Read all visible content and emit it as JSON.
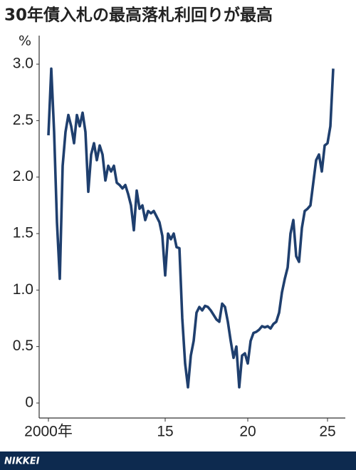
{
  "chart_data": {
    "type": "line",
    "title": "30年債入札の最高落札利回りが最高",
    "y_unit": "%",
    "logo": "NIKKEI",
    "categories": [
      "2000年",
      null,
      null,
      null,
      null,
      null,
      null,
      null,
      null,
      null,
      null,
      null,
      null,
      null,
      null,
      null,
      null,
      null,
      null,
      null,
      null,
      null,
      null,
      null,
      null,
      null,
      null,
      null,
      null,
      null,
      null,
      null,
      null,
      null,
      null,
      null,
      null,
      null,
      null,
      null,
      null,
      "15",
      null,
      null,
      null,
      null,
      null,
      null,
      null,
      null,
      null,
      null,
      null,
      null,
      null,
      null,
      null,
      null,
      null,
      null,
      null,
      null,
      null,
      null,
      null,
      null,
      null,
      null,
      null,
      null,
      "20",
      null,
      null,
      null,
      null,
      null,
      null,
      null,
      null,
      null,
      null,
      null,
      null,
      null,
      null,
      null,
      null,
      null,
      null,
      null,
      null,
      null,
      null,
      null,
      null,
      null,
      null,
      null,
      "25",
      null,
      null
    ],
    "series": [
      {
        "name": null,
        "color": "#1f3f6e",
        "values": [
          2.37,
          2.96,
          2.4,
          1.6,
          1.1,
          2.1,
          2.4,
          2.55,
          2.45,
          2.3,
          2.55,
          2.45,
          2.57,
          2.4,
          1.87,
          2.2,
          2.3,
          2.15,
          2.28,
          2.2,
          1.97,
          2.1,
          2.05,
          2.1,
          1.95,
          1.93,
          1.9,
          1.93,
          1.85,
          1.75,
          1.53,
          1.88,
          1.72,
          1.75,
          1.62,
          1.7,
          1.68,
          1.7,
          1.65,
          1.6,
          1.48,
          1.13,
          1.5,
          1.45,
          1.5,
          1.38,
          1.37,
          0.75,
          0.35,
          0.14,
          0.42,
          0.55,
          0.8,
          0.85,
          0.82,
          0.86,
          0.85,
          0.82,
          0.78,
          0.74,
          0.72,
          0.88,
          0.85,
          0.72,
          0.55,
          0.4,
          0.5,
          0.14,
          0.42,
          0.44,
          0.35,
          0.55,
          0.62,
          0.63,
          0.65,
          0.68,
          0.67,
          0.68,
          0.66,
          0.7,
          0.72,
          0.8,
          0.98,
          1.1,
          1.2,
          1.5,
          1.62,
          1.3,
          1.25,
          1.55,
          1.7,
          1.72,
          1.75,
          1.95,
          2.15,
          2.2,
          2.05,
          2.28,
          2.3,
          2.45,
          2.96
        ]
      }
    ],
    "ylim": [
      -0.12,
      3.24
    ],
    "yticks": [
      0,
      0.5,
      {
        "value": 1,
        "label": "1.0"
      },
      1.5,
      {
        "value": 2,
        "label": "2.0"
      },
      2.5,
      {
        "value": 3,
        "label": "3.0"
      }
    ]
  }
}
